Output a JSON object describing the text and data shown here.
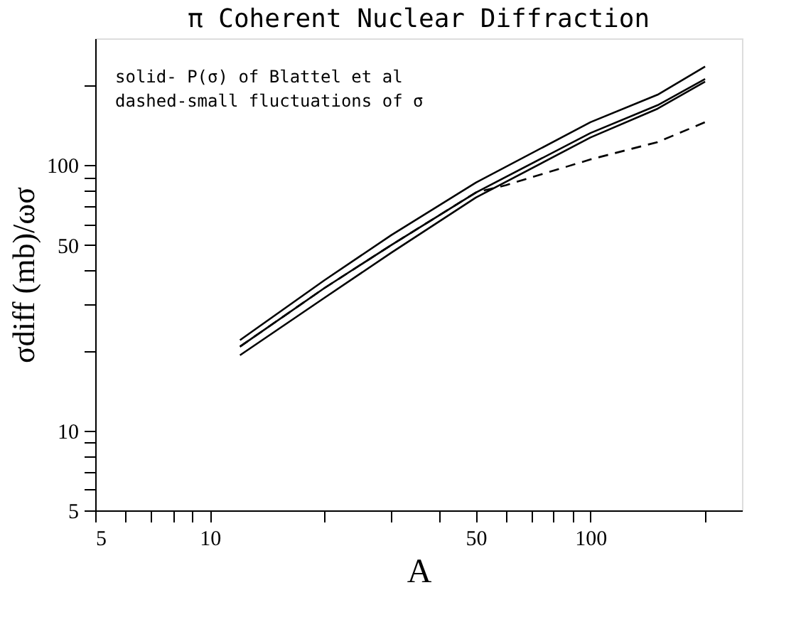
{
  "chart_data": {
    "type": "line",
    "title": "π Coherent Nuclear Diffraction",
    "xlabel": "A",
    "ylabel": "σdiff (mb)/ωσ",
    "annotations": [
      "solid- P(σ) of   Blattel et al",
      "dashed-small fluctuations of σ"
    ],
    "log": "xy",
    "grid": false,
    "legend": false,
    "marker": "none",
    "xlim": [
      5,
      250
    ],
    "ylim": [
      5,
      300
    ],
    "xticks": [
      5,
      {
        "value": 6,
        "label": null
      },
      {
        "value": 7,
        "label": null
      },
      {
        "value": 8,
        "label": null
      },
      {
        "value": 9,
        "label": null
      },
      10,
      {
        "value": 20,
        "label": null
      },
      {
        "value": 30,
        "label": null
      },
      {
        "value": 40,
        "label": null
      },
      50,
      {
        "value": 60,
        "label": null
      },
      {
        "value": 70,
        "label": null
      },
      {
        "value": 80,
        "label": null
      },
      {
        "value": 90,
        "label": null
      },
      100,
      {
        "value": 200,
        "label": null
      }
    ],
    "yticks": [
      5,
      {
        "value": 6,
        "label": null
      },
      {
        "value": 7,
        "label": null
      },
      {
        "value": 8,
        "label": null
      },
      {
        "value": 9,
        "label": null
      },
      10,
      {
        "value": 20,
        "label": null
      },
      {
        "value": 30,
        "label": null
      },
      {
        "value": 40,
        "label": null
      },
      50,
      {
        "value": 60,
        "label": null
      },
      {
        "value": 70,
        "label": null
      },
      {
        "value": 80,
        "label": null
      },
      {
        "value": 90,
        "label": null
      },
      100,
      {
        "value": 200,
        "label": null
      }
    ],
    "x": [
      12,
      20,
      30,
      50,
      100,
      150,
      200
    ],
    "series": [
      {
        "color": "#000000",
        "line_style": "solid",
        "values": [
          21.9,
          36.8,
          54.5,
          85.9,
          145,
          184,
          235
        ]
      },
      {
        "color": "#000000",
        "line_style": "solid",
        "values": [
          20.7,
          34.4,
          50,
          78.8,
          132,
          168,
          211
        ]
      },
      {
        "color": "#000000",
        "line_style": "solid",
        "values": [
          19.2,
          31.6,
          46.8,
          75.4,
          127,
          163,
          206
        ]
      },
      {
        "color": "#000000",
        "line_style": "dashed",
        "x": [
          12,
          20,
          30,
          50,
          60,
          100,
          150,
          200
        ],
        "values": [
          20.7,
          34.4,
          50,
          78.8,
          84,
          105,
          122,
          145
        ]
      }
    ]
  }
}
